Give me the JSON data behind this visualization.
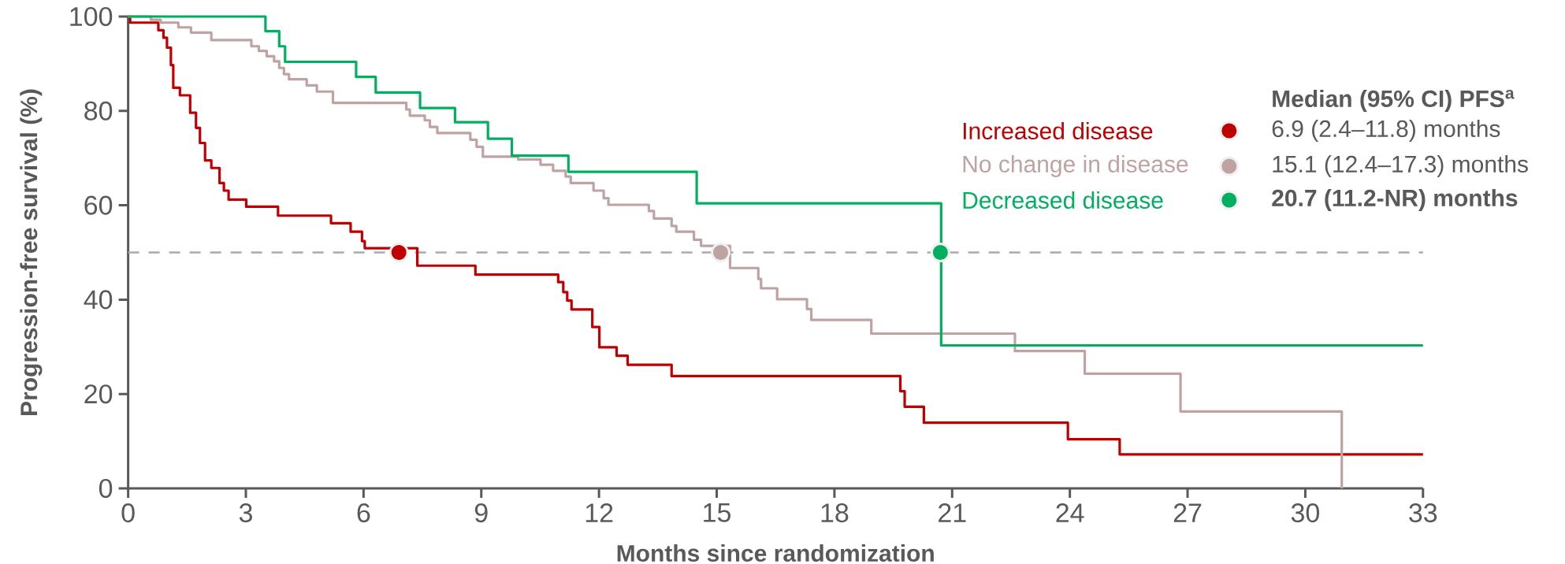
{
  "chart_data": {
    "type": "step",
    "xlabel": "Months since randomization",
    "ylabel": "Progression-free survival (%)",
    "xlim": [
      0,
      33
    ],
    "xticks": [
      0,
      3,
      6,
      9,
      12,
      15,
      18,
      21,
      24,
      27,
      30,
      33
    ],
    "ylim": [
      0,
      100
    ],
    "yticks": [
      0,
      20,
      40,
      60,
      80,
      100
    ],
    "legend": "top right",
    "annotations": [
      "Median (95% CI) PFS$^{a}$",
      "6.9 (2.4–11.8) months",
      "15.1 (12.4–17.3) months",
      "**20.7 (11.2-NR) months**"
    ],
    "ref_lines": [
      {
        "axis": "y",
        "value": 50,
        "color": "#aaaaaa",
        "line_style": "dashed"
      }
    ],
    "series": [
      {
        "name": "Increased disease",
        "color": "#c00000",
        "x": [
          0,
          0.05,
          0.77,
          0.9,
          0.99,
          1.09,
          1.15,
          1.32,
          1.58,
          1.73,
          1.83,
          1.96,
          2.12,
          2.33,
          2.44,
          2.56,
          3.01,
          3.82,
          5.17,
          5.67,
          5.96,
          6.03,
          7.37,
          8.85,
          10.96,
          11.09,
          11.19,
          11.3,
          11.83,
          12.01,
          12.45,
          12.73,
          13.85,
          19.68,
          19.79,
          20.28,
          23.95,
          25.27,
          33
        ],
        "values": [
          100,
          98.7,
          97.1,
          95.5,
          93.4,
          89.7,
          84.9,
          83.3,
          79.6,
          76.4,
          73.2,
          69.5,
          67.9,
          64.7,
          63.1,
          61.2,
          59.7,
          57.8,
          56.2,
          54.4,
          52.4,
          50.9,
          47.2,
          45.3,
          43.7,
          41.6,
          39.8,
          37.9,
          34.2,
          29.9,
          28.1,
          26.2,
          23.8,
          20.6,
          17.3,
          13.9,
          10.4,
          7.2,
          7.2
        ]
      },
      {
        "name": "No change in disease",
        "color": "#bfa3a3",
        "x": [
          0,
          0.58,
          0.83,
          1.28,
          1.6,
          2.12,
          3.14,
          3.33,
          3.53,
          3.72,
          3.85,
          3.97,
          4.1,
          4.55,
          4.81,
          5.22,
          7.09,
          7.18,
          7.56,
          7.69,
          7.88,
          8.72,
          8.88,
          9.04,
          9.94,
          10.51,
          10.83,
          11.15,
          11.28,
          11.86,
          12.12,
          12.24,
          13.27,
          13.4,
          13.85,
          13.97,
          14.42,
          14.6,
          15.34,
          16.06,
          16.13,
          16.54,
          17.3,
          17.41,
          18.94,
          22.6,
          24.38,
          26.82,
          30.93
        ],
        "values": [
          100,
          99.3,
          98.7,
          97.7,
          96.6,
          95,
          93.7,
          92.7,
          91.6,
          90.5,
          89.1,
          87.8,
          86.7,
          85.4,
          84.1,
          81.7,
          80.3,
          79,
          78,
          76.6,
          75.3,
          73.9,
          72.4,
          70.3,
          69.7,
          68.6,
          67.3,
          66.1,
          64.7,
          63.1,
          61.5,
          60.1,
          58.8,
          57.2,
          55.6,
          54.4,
          52.7,
          51.4,
          46.7,
          44.4,
          42.4,
          40.1,
          38,
          35.7,
          32.8,
          29.1,
          24.3,
          16.3,
          0
        ]
      },
      {
        "name": "Decreased disease",
        "color": "#00b060",
        "x": [
          0,
          3.5,
          3.85,
          4.0,
          5.81,
          6.31,
          7.44,
          8.33,
          9.17,
          9.78,
          11.22,
          14.49,
          20.72,
          33
        ],
        "values": [
          100,
          96.9,
          93.7,
          90.4,
          87.2,
          83.9,
          80.6,
          77.6,
          74.1,
          70.5,
          67.1,
          60.4,
          30.3,
          30.3
        ]
      },
      {
        "type": "scatter",
        "marker": "circle",
        "x": [
          6.9,
          15.1,
          20.7
        ],
        "values": [
          50,
          50,
          50
        ],
        "colors": [
          "#c00000",
          "#bfa3a3",
          "#00b060"
        ]
      }
    ]
  }
}
